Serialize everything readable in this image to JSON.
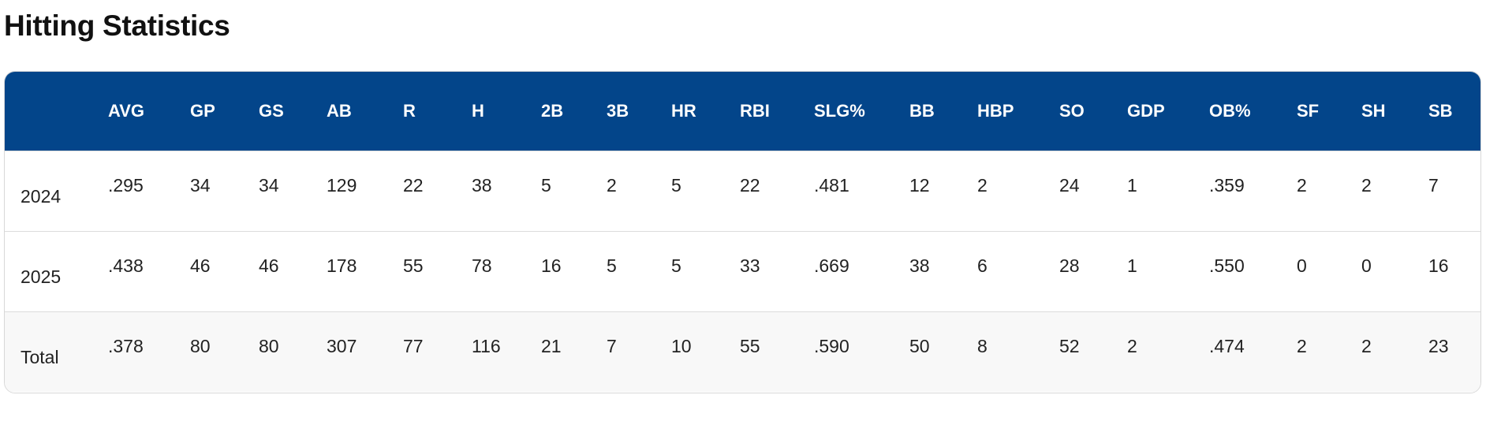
{
  "page": {
    "title": "Hitting Statistics"
  },
  "colors": {
    "header_background": "#03458a",
    "header_text": "#ffffff",
    "total_row_background": "#f8f8f8"
  },
  "table": {
    "columns": [
      "",
      "AVG",
      "GP",
      "GS",
      "AB",
      "R",
      "H",
      "2B",
      "3B",
      "HR",
      "RBI",
      "SLG%",
      "BB",
      "HBP",
      "SO",
      "GDP",
      "OB%",
      "SF",
      "SH",
      "SB"
    ],
    "rows": [
      {
        "label": "2024",
        "values": [
          ".295",
          "34",
          "34",
          "129",
          "22",
          "38",
          "5",
          "2",
          "5",
          "22",
          ".481",
          "12",
          "2",
          "24",
          "1",
          ".359",
          "2",
          "2",
          "7"
        ]
      },
      {
        "label": "2025",
        "values": [
          ".438",
          "46",
          "46",
          "178",
          "55",
          "78",
          "16",
          "5",
          "5",
          "33",
          ".669",
          "38",
          "6",
          "28",
          "1",
          ".550",
          "0",
          "0",
          "16"
        ]
      },
      {
        "label": "Total",
        "values": [
          ".378",
          "80",
          "80",
          "307",
          "77",
          "116",
          "21",
          "7",
          "10",
          "55",
          ".590",
          "50",
          "8",
          "52",
          "2",
          ".474",
          "2",
          "2",
          "23"
        ]
      }
    ]
  }
}
